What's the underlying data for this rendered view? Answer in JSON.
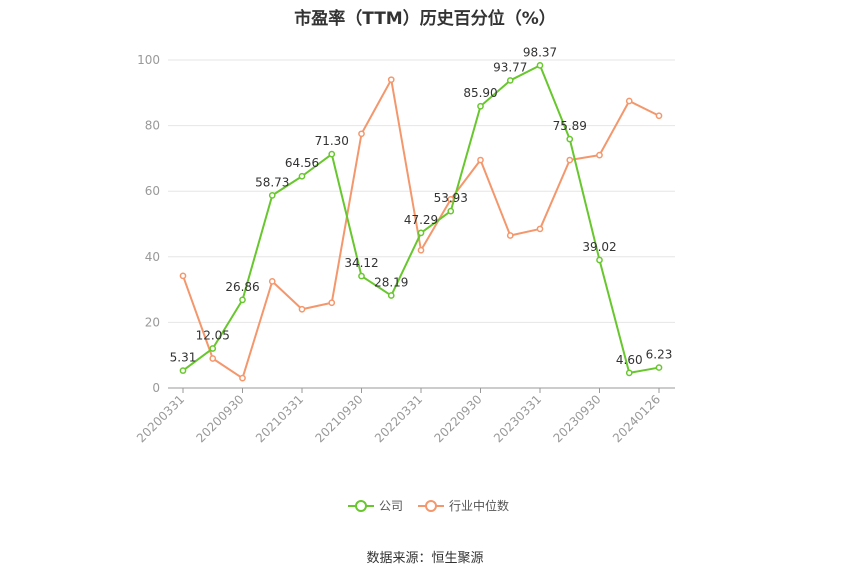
{
  "chart_data": {
    "type": "line",
    "title": "市盈率（TTM）历史百分位（%）",
    "xlabel": "",
    "ylabel": "",
    "ylim": [
      0,
      100
    ],
    "yticks": [
      0,
      20,
      40,
      60,
      80,
      100
    ],
    "x_tick_labels": [
      "20200331",
      "20200930",
      "20210331",
      "20210930",
      "20220331",
      "20220930",
      "20230331",
      "20230930",
      "20240126"
    ],
    "x_tick_index": [
      0,
      2,
      4,
      6,
      8,
      10,
      12,
      14,
      16
    ],
    "n_points": 17,
    "grid": true,
    "legend_position": "bottom",
    "series": [
      {
        "name": "公司",
        "color": "#67c72d",
        "values": [
          5.31,
          12.05,
          26.86,
          58.73,
          64.56,
          71.3,
          34.12,
          28.19,
          47.29,
          53.93,
          85.9,
          93.77,
          98.37,
          75.89,
          39.02,
          4.6,
          6.23
        ],
        "labels": [
          "5.31",
          "12.05",
          "26.86",
          "58.73",
          "64.56",
          "71.30",
          "34.12",
          "28.19",
          "47.29",
          "53.93",
          "85.90",
          "93.77",
          "98.37",
          "75.89",
          "39.02",
          "4.60",
          "6.23"
        ]
      },
      {
        "name": "行业中位数",
        "color": "#f4976c",
        "values": [
          34.2,
          9.0,
          3.0,
          32.5,
          24.0,
          26.0,
          77.5,
          94.0,
          42.0,
          57.5,
          69.5,
          46.5,
          48.5,
          69.5,
          71.0,
          87.5,
          83.0
        ]
      }
    ]
  },
  "source": "数据来源：恒生聚源"
}
